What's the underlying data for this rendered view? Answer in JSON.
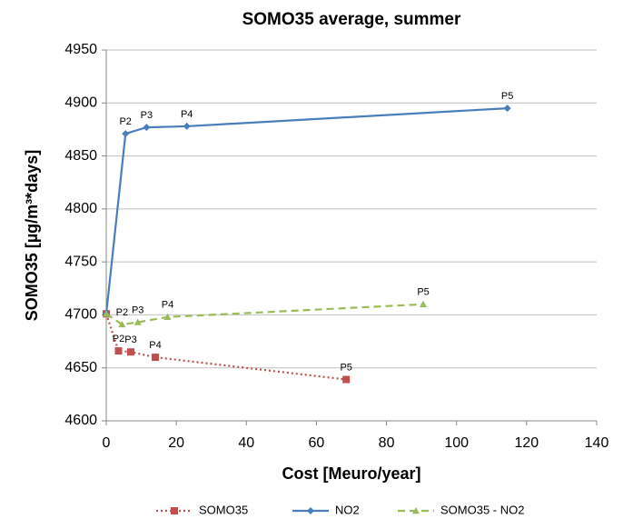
{
  "chart_data": {
    "type": "line",
    "title": "SOMO35 average, summer",
    "x_label": "Cost [Meuro/year]",
    "y_label": "SOMO35 [µg/m³*days]",
    "xlim": [
      0,
      140
    ],
    "xticks": [
      0,
      20,
      40,
      60,
      80,
      100,
      120,
      140
    ],
    "ylim": [
      4600,
      4950
    ],
    "yticks": [
      4600,
      4650,
      4700,
      4750,
      4800,
      4850,
      4900,
      4950
    ],
    "grid": true,
    "legend": "bottom",
    "series": [
      {
        "name": "SOMO35",
        "color": "#c0504d",
        "dash": "dotted",
        "marker": "square",
        "x": [
          0,
          3.5,
          7,
          14,
          68.5
        ],
        "values": [
          4701,
          4666,
          4665,
          4660,
          4639
        ],
        "point_labels": [
          null,
          "P2",
          "P3",
          "P4",
          "P5"
        ]
      },
      {
        "name": "NO2",
        "color": "#4a7ebb",
        "dash": "solid",
        "marker": "diamond",
        "x": [
          0,
          5.5,
          11.5,
          23,
          114.5
        ],
        "values": [
          4701,
          4871,
          4877,
          4878,
          4895
        ],
        "point_labels": [
          null,
          "P2",
          "P3",
          "P4",
          "P5"
        ]
      },
      {
        "name": "SOMO35 - NO2",
        "color": "#9bbb59",
        "dash": "dashed",
        "marker": "triangle",
        "x": [
          0,
          4.5,
          9,
          17.5,
          90.5
        ],
        "values": [
          4701,
          4691,
          4693,
          4698,
          4710
        ],
        "point_labels": [
          null,
          "P2",
          "P3",
          "P4",
          "P5"
        ]
      }
    ]
  }
}
